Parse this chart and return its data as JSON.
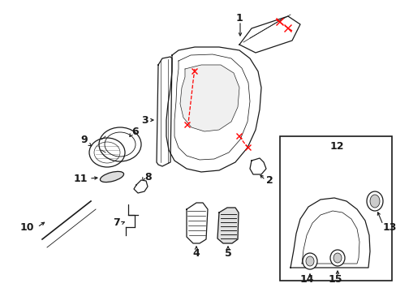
{
  "bg_color": "#ffffff",
  "line_color": "#1a1a1a",
  "red_color": "#ff0000",
  "fig_width": 4.89,
  "fig_height": 3.6,
  "dpi": 100
}
